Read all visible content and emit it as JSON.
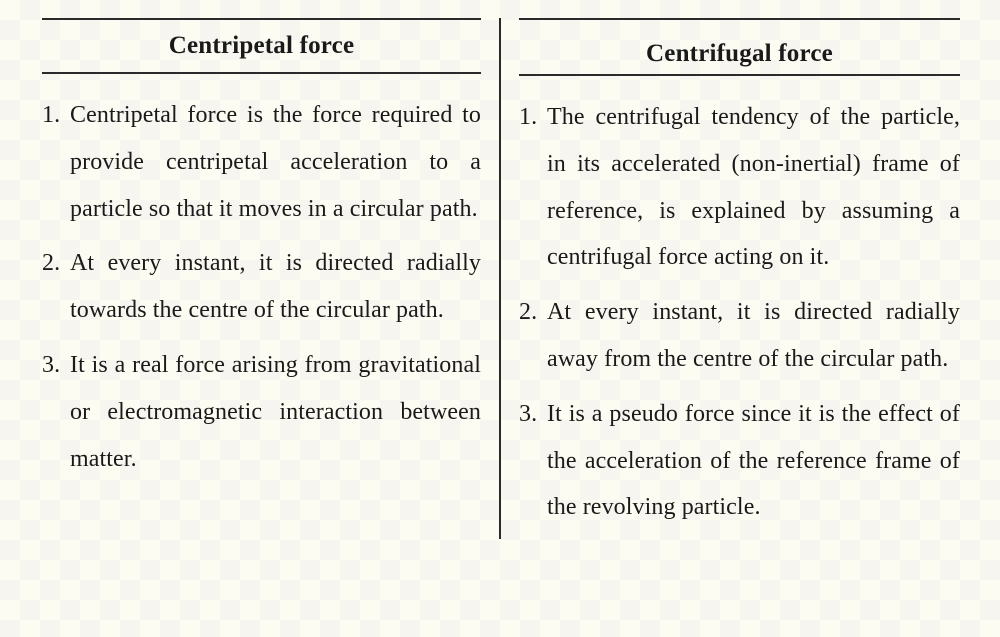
{
  "table": {
    "background_color": "#fdfcf4",
    "border_color": "#2a2a2a",
    "font_family": "Georgia, Times New Roman, serif",
    "header_fontsize_pt": 19,
    "body_fontsize_pt": 18,
    "line_height": 1.95,
    "columns": [
      {
        "header": "Centripetal force",
        "points": [
          "Centripetal force is the force required to provide centripetal acceleration to a particle so that it moves in a circular path.",
          "At every instant, it is directed radially towards the centre of the circular path.",
          "It is a real force arising from gravitational or electromagnetic interaction between matter."
        ]
      },
      {
        "header": "Centrifugal force",
        "points": [
          "The centrifugal tendency of the particle, in its accelerated (non-inertial) frame of reference, is explained by assuming a centrifugal force acting on it.",
          "At every instant, it is directed radially away from the centre of the circular path.",
          "It is a pseudo force since it is the effect of the acceleration of the reference frame of the revolving particle."
        ]
      }
    ]
  }
}
